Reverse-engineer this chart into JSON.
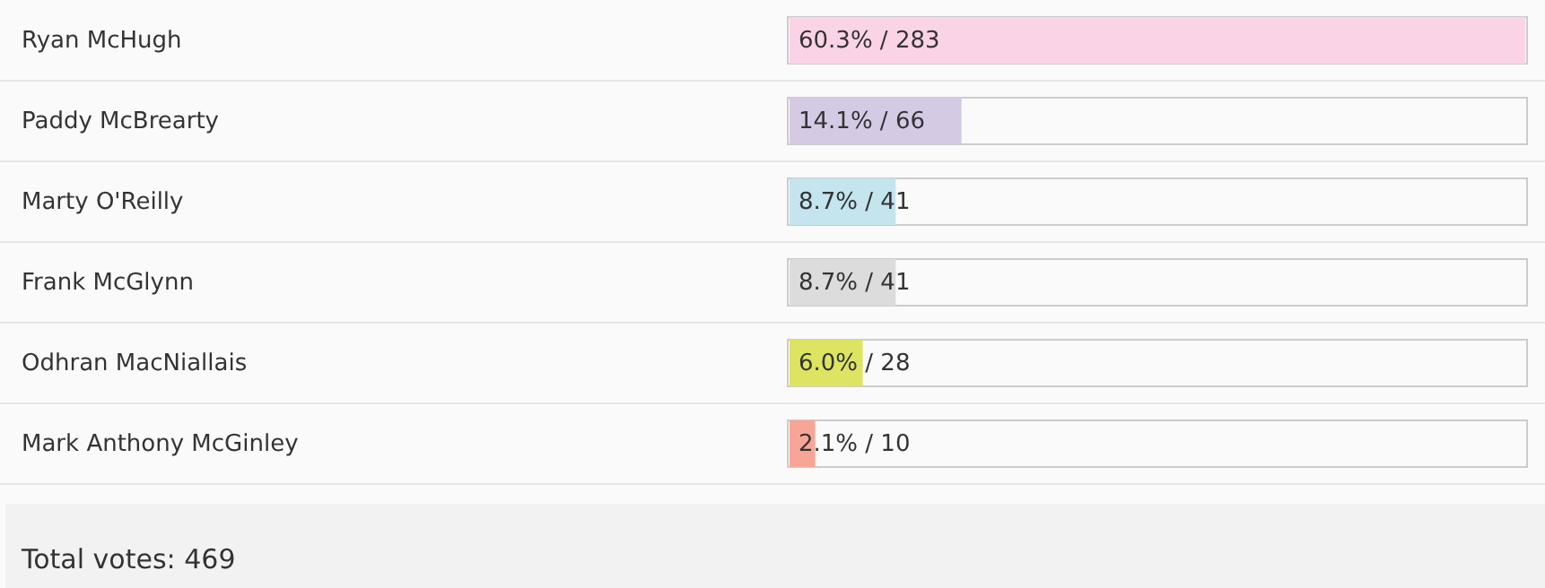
{
  "chart_data": {
    "type": "bar",
    "orientation": "horizontal",
    "categories": [
      "Ryan McHugh",
      "Paddy McBrearty",
      "Marty O'Reilly",
      "Frank McGlynn",
      "Odhran MacNiallais",
      "Mark Anthony McGinley"
    ],
    "values": [
      60.3,
      14.1,
      8.7,
      8.7,
      6.0,
      2.1
    ],
    "colors": [
      "#fbd3e6",
      "#d5cae4",
      "#c4e4ee",
      "#dcdcdc",
      "#dce462",
      "#f8a596"
    ],
    "value_labels": [
      "60.3% / 283",
      "14.1% / 66",
      "8.7% / 41",
      "8.7% / 41",
      "6.0% / 28",
      "2.1% / 10"
    ],
    "annotations": [
      "Total votes:  469"
    ]
  }
}
